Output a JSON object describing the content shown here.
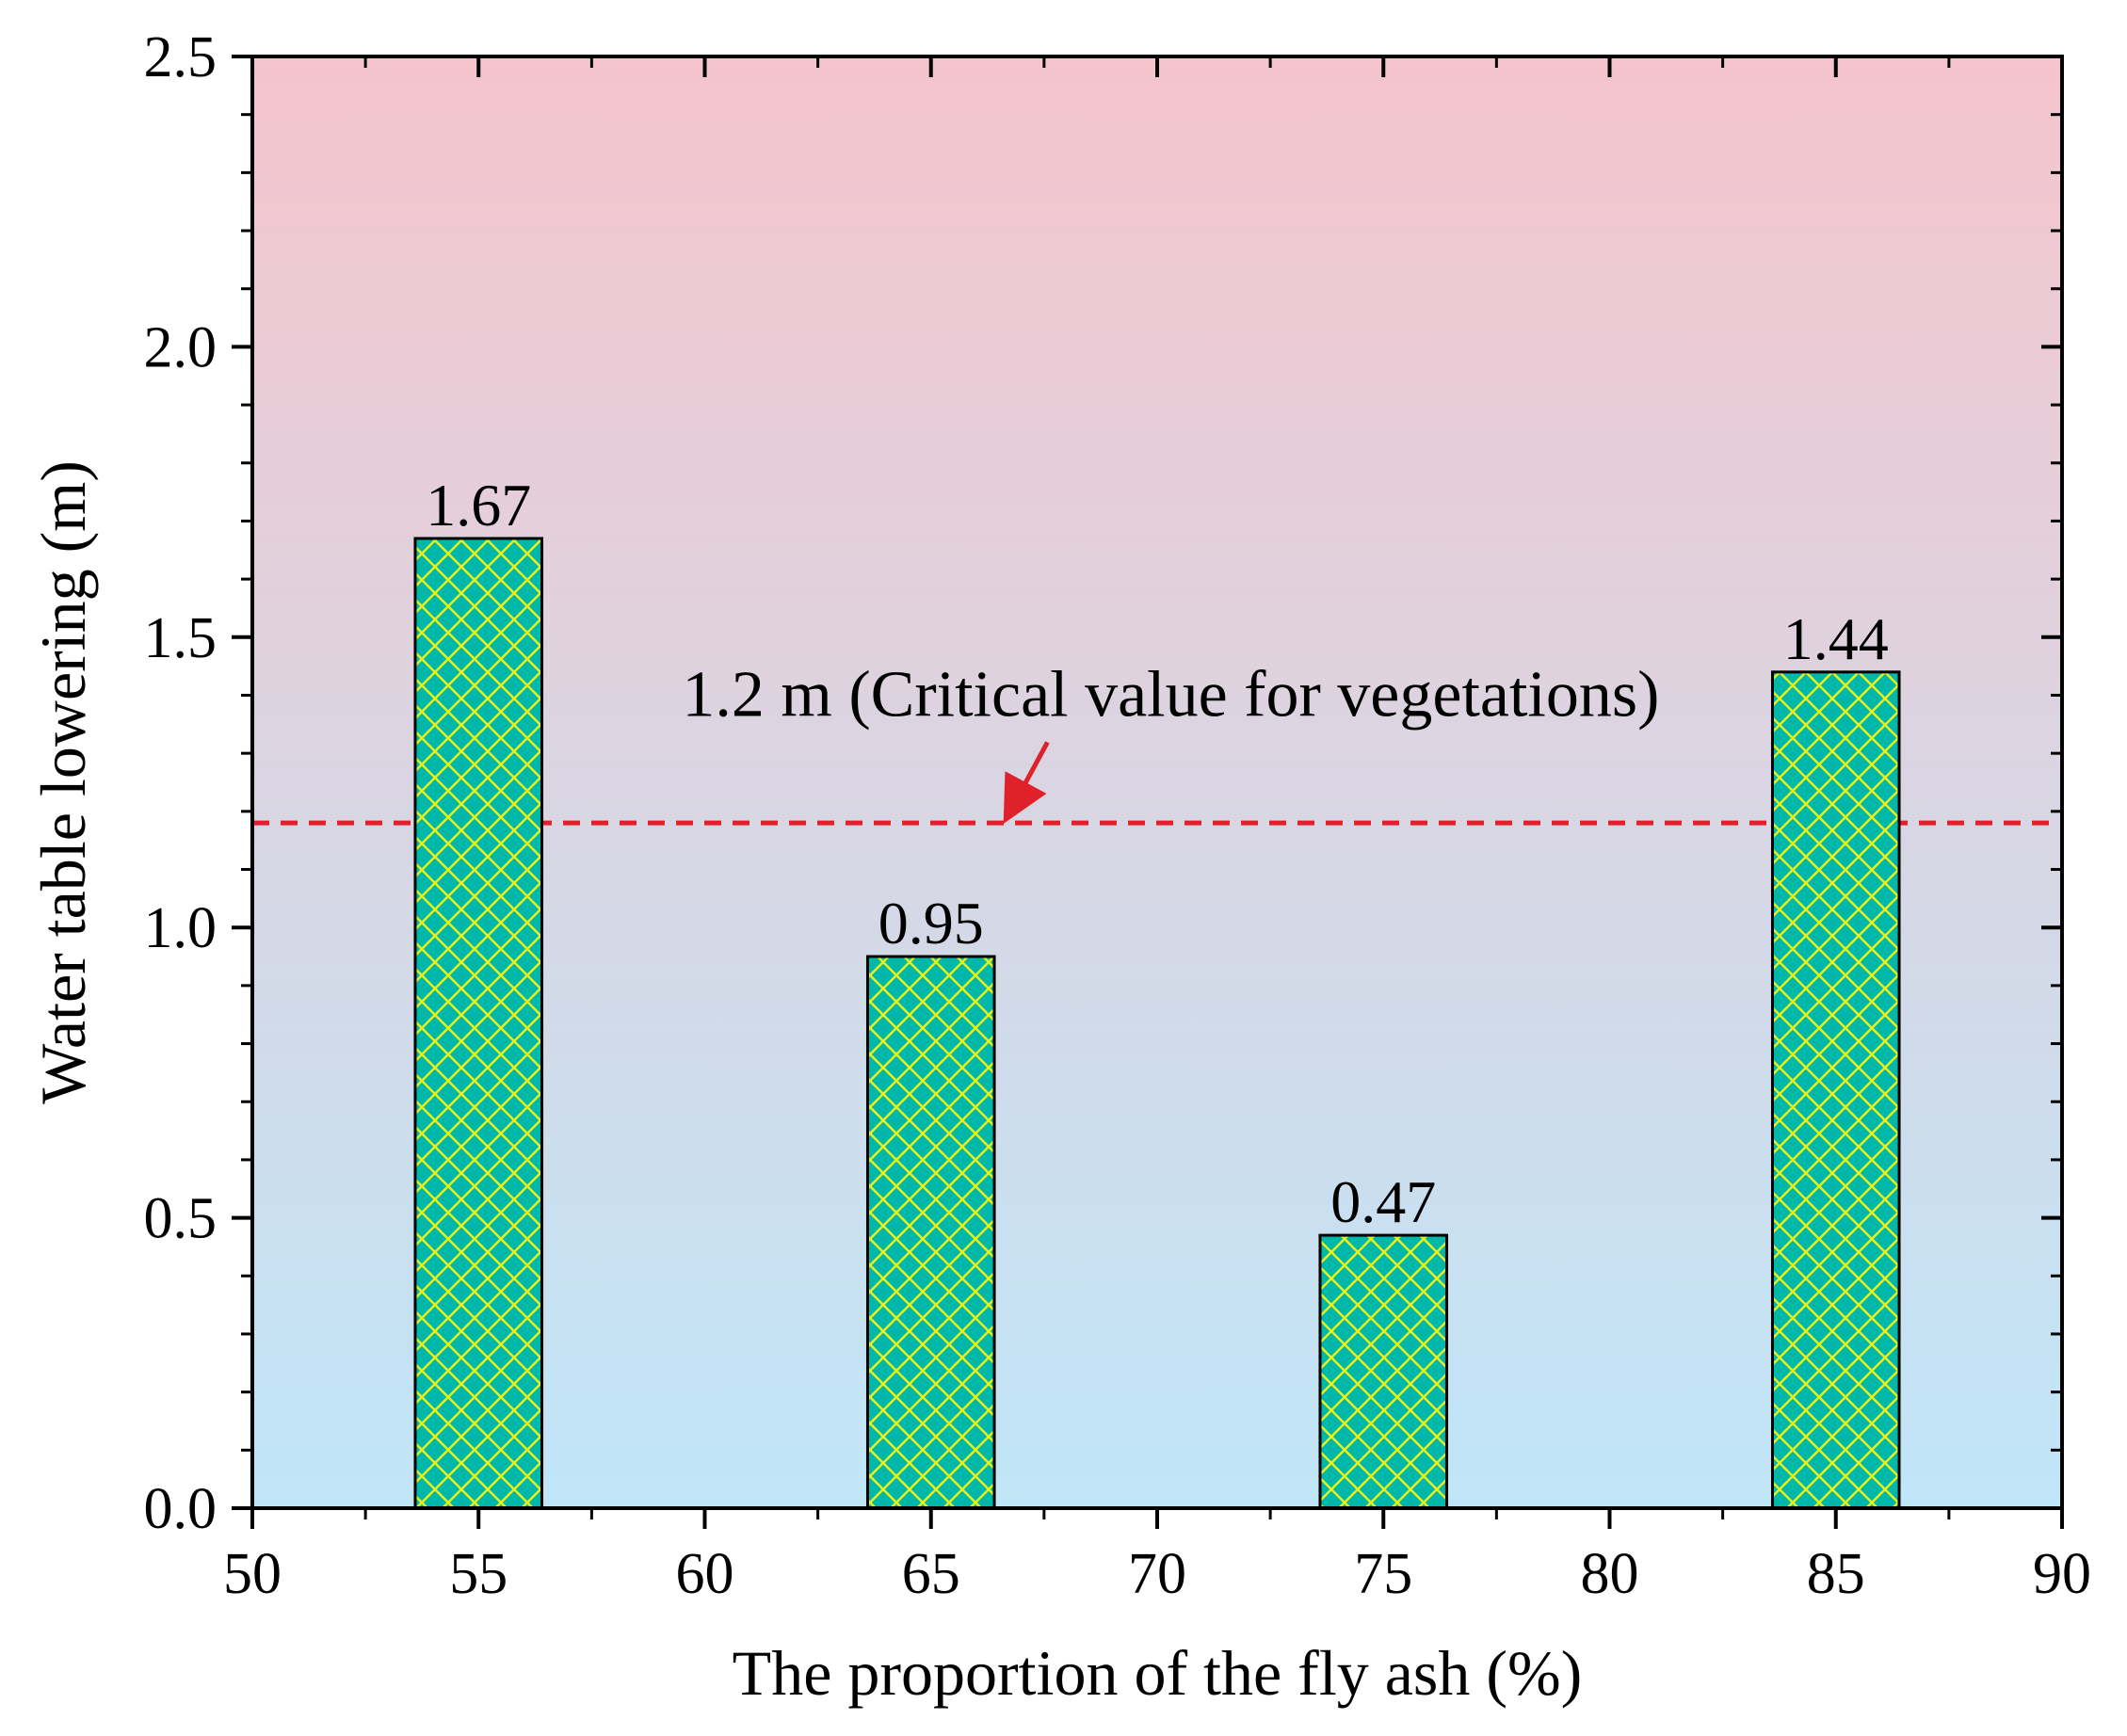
{
  "chart_data": {
    "type": "bar",
    "title": "",
    "xlabel": "The proportion of the fly ash (%)",
    "ylabel": "Water table lowering (m)",
    "x": [
      55,
      65,
      75,
      85
    ],
    "values": [
      1.67,
      0.95,
      0.47,
      1.44
    ],
    "data_labels": [
      "1.67",
      "0.95",
      "0.47",
      "1.44"
    ],
    "xlim": [
      50,
      90
    ],
    "ylim": [
      0,
      2.5
    ],
    "xticks": [
      50,
      55,
      60,
      65,
      70,
      75,
      80,
      85,
      90
    ],
    "xtick_labels": [
      "50",
      "55",
      "60",
      "65",
      "70",
      "75",
      "80",
      "85",
      "90"
    ],
    "yticks": [
      0,
      0.5,
      1.0,
      1.5,
      2.0,
      2.5
    ],
    "ytick_labels": [
      "0.0",
      "0.5",
      "1.0",
      "1.5",
      "2.0",
      "2.5"
    ],
    "bar_width": 2.8,
    "grid": false,
    "background_gradient": {
      "top": "#f5c4cc",
      "bottom": "#bfe6f8"
    },
    "bar_fill": "#00b8a9",
    "bar_hatch": "#e6f21a",
    "reference_line": {
      "value": 1.18,
      "label": "1.2 m (Critical value for vegetations)",
      "color": "#e0202a",
      "style": "dashed",
      "arrow_target_x": 66.7,
      "label_anchor_x": 70.3,
      "label_anchor_y": 1.4
    }
  }
}
